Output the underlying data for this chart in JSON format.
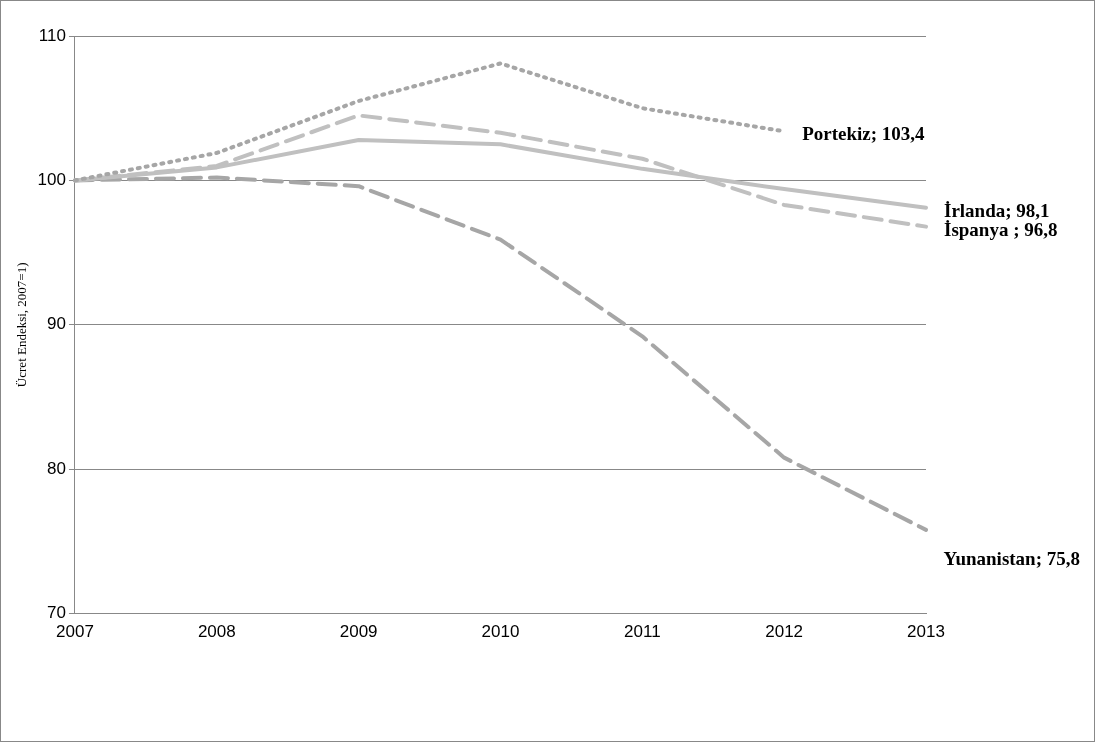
{
  "chart_data": {
    "type": "line",
    "ylabel": "Ücret Endeksi, 2007=1)",
    "categories": [
      "2007",
      "2008",
      "2009",
      "2010",
      "2011",
      "2012",
      "2013"
    ],
    "series": [
      {
        "color": "#a6a6a6",
        "line_style": "dotted",
        "values": [
          100,
          101.9,
          105.5,
          108.1,
          105.0,
          103.4,
          null
        ]
      },
      {
        "color": "#c0c0c0",
        "line_style": "dashed",
        "values": [
          100,
          101.0,
          104.5,
          103.3,
          101.5,
          98.3,
          96.8
        ]
      },
      {
        "color": "#c0c0c0",
        "line_style": "solid",
        "values": [
          100,
          100.9,
          102.8,
          102.5,
          100.8,
          99.4,
          98.1
        ]
      },
      {
        "color": "#a6a6a6",
        "line_style": "dashed",
        "values": [
          100,
          100.2,
          99.6,
          95.9,
          89.2,
          80.8,
          75.8
        ]
      }
    ],
    "ylim": [
      70,
      110
    ],
    "yticks": [
      70,
      80,
      90,
      100,
      110
    ],
    "grid": "y",
    "marker": "none",
    "annotations": [
      {
        "text": "Portekiz; 103,4",
        "x": "2012",
        "y": 103.4
      },
      {
        "text": "İrlanda; 98,1",
        "x": "2013",
        "y": 98.1
      },
      {
        "text": "İspanya ; 96,8",
        "x": "2013",
        "y": 96.8
      },
      {
        "text": "Yunanistan; 75,8",
        "x": "2013",
        "y": 75.8
      }
    ]
  }
}
